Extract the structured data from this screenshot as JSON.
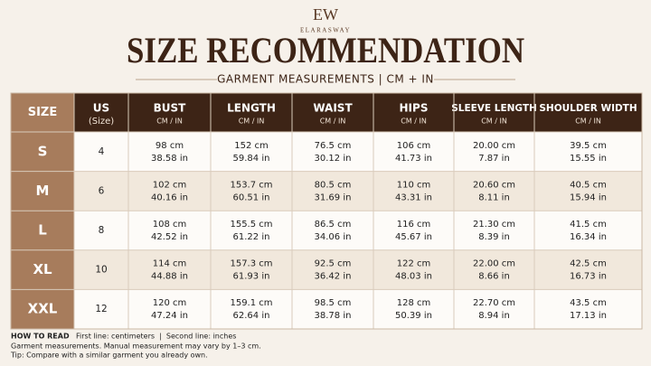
{
  "logo": {
    "monogram": "EW",
    "name": "ELARASWAY"
  },
  "header": {
    "title": "SIZE RECOMMENDATION",
    "subtitle": "GARMENT MEASUREMENTS | CM + IN"
  },
  "table": {
    "columns": [
      {
        "title": "SIZE"
      },
      {
        "title": "US",
        "sub": "(Size)"
      },
      {
        "title": "BUST",
        "sub": "CM / IN"
      },
      {
        "title": "LENGTH",
        "sub": "CM / IN"
      },
      {
        "title": "WAIST",
        "sub": "CM / IN"
      },
      {
        "title": "HIPS",
        "sub": "CM / IN"
      },
      {
        "title": "SLEEVE LENGTH",
        "sub": "CM / IN"
      },
      {
        "title": "SHOULDER WIDTH",
        "sub": "CM / IN"
      }
    ],
    "rows": [
      {
        "size": "S",
        "us": 4,
        "cells": [
          [
            "98 cm",
            "38.58 in"
          ],
          [
            "152 cm",
            "59.84 in"
          ],
          [
            "76.5 cm",
            "30.12 in"
          ],
          [
            "106 cm",
            "41.73 in"
          ],
          [
            "20.00 cm",
            "7.87 in"
          ],
          [
            "39.5 cm",
            "15.55 in"
          ]
        ]
      },
      {
        "size": "M",
        "us": 6,
        "cells": [
          [
            "102 cm",
            "40.16 in"
          ],
          [
            "153.7 cm",
            "60.51 in"
          ],
          [
            "80.5 cm",
            "31.69 in"
          ],
          [
            "110 cm",
            "43.31 in"
          ],
          [
            "20.60 cm",
            "8.11 in"
          ],
          [
            "40.5 cm",
            "15.94 in"
          ]
        ]
      },
      {
        "size": "L",
        "us": 8,
        "cells": [
          [
            "108 cm",
            "42.52 in"
          ],
          [
            "155.5 cm",
            "61.22 in"
          ],
          [
            "86.5 cm",
            "34.06 in"
          ],
          [
            "116 cm",
            "45.67 in"
          ],
          [
            "21.30 cm",
            "8.39 in"
          ],
          [
            "41.5 cm",
            "16.34 in"
          ]
        ]
      },
      {
        "size": "XL",
        "us": 10,
        "cells": [
          [
            "114 cm",
            "44.88 in"
          ],
          [
            "157.3 cm",
            "61.93 in"
          ],
          [
            "92.5 cm",
            "36.42 in"
          ],
          [
            "122 cm",
            "48.03 in"
          ],
          [
            "22.00 cm",
            "8.66 in"
          ],
          [
            "42.5 cm",
            "16.73 in"
          ]
        ]
      },
      {
        "size": "XXL",
        "us": 12,
        "cells": [
          [
            "120 cm",
            "47.24 in"
          ],
          [
            "159.1 cm",
            "62.64 in"
          ],
          [
            "98.5 cm",
            "38.78 in"
          ],
          [
            "128 cm",
            "50.39 in"
          ],
          [
            "22.70 cm",
            "8.94 in"
          ],
          [
            "43.5 cm",
            "17.13 in"
          ]
        ]
      }
    ]
  },
  "footer": {
    "label": "HOW TO READ",
    "line": "First line: centimeters  |  Second line: inches",
    "notes": [
      "Garment measurements. Manual measurement may vary by 1–3 cm.",
      "Tip: Compare with a similar garment you already own."
    ]
  }
}
